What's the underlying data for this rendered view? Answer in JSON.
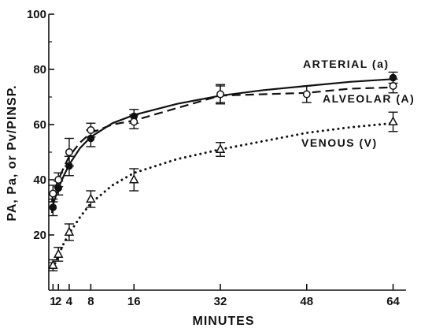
{
  "chart_data": {
    "type": "line",
    "xlabel": "MINUTES",
    "ylabel": "PA, Pa, or Pv/PINSP.",
    "xlim": [
      0,
      66
    ],
    "ylim": [
      0,
      100
    ],
    "x_ticks": [
      1,
      2,
      4,
      8,
      16,
      32,
      48,
      64
    ],
    "x_tick_labels": [
      "1",
      "2",
      "4",
      "8",
      "16",
      "32",
      "48",
      "64"
    ],
    "y_ticks": [
      20,
      40,
      60,
      80,
      100
    ],
    "y_tick_labels": [
      "20",
      "40",
      "60",
      "80",
      "100"
    ],
    "grid": false,
    "legend": "none",
    "series": [
      {
        "name": "ARTERIAL (a)",
        "marker": "filled-circle",
        "line_style": "solid",
        "x": [
          1,
          2,
          4,
          8,
          16,
          32,
          64
        ],
        "y": [
          30,
          37,
          45,
          55,
          63,
          71,
          77
        ],
        "errors": [
          3,
          2.5,
          3.5,
          3,
          2.5,
          3,
          2
        ],
        "curve_x": [
          0.8,
          1,
          2,
          3,
          4,
          6,
          8,
          12,
          16,
          24,
          32,
          40,
          48,
          56,
          64
        ],
        "curve_y": [
          28,
          31,
          37,
          41.5,
          45.5,
          51.5,
          55.5,
          60.5,
          63.5,
          67.5,
          70.5,
          72.5,
          74,
          75.5,
          76.5
        ]
      },
      {
        "name": "ALVEOLAR (A)",
        "marker": "open-circle",
        "line_style": "dashed",
        "x": [
          1,
          2,
          4,
          8,
          16,
          32,
          48,
          64
        ],
        "y": [
          35,
          40,
          50,
          58,
          61,
          71,
          71,
          74
        ],
        "errors": [
          3,
          2.5,
          5,
          2.5,
          2.5,
          3.5,
          3,
          2.5
        ],
        "curve_x": [
          0.8,
          1,
          2,
          3,
          4,
          6,
          8,
          12,
          16,
          24,
          32,
          40,
          48,
          56,
          64
        ],
        "curve_y": [
          32,
          35,
          40,
          44.5,
          48.5,
          53.5,
          57,
          60,
          61.5,
          66,
          70.5,
          71,
          71.5,
          73,
          73.5
        ]
      },
      {
        "name": "VENOUS (V)",
        "marker": "open-triangle",
        "line_style": "dotted",
        "x": [
          1,
          2,
          4,
          8,
          16,
          32,
          64
        ],
        "y": [
          9,
          13,
          21,
          33,
          40,
          51,
          61
        ],
        "errors": [
          2,
          2.5,
          3,
          3,
          4,
          2.5,
          3.5
        ],
        "curve_x": [
          1,
          2,
          3,
          4,
          6,
          8,
          12,
          16,
          24,
          32,
          40,
          48,
          56,
          64
        ],
        "curve_y": [
          8,
          12.5,
          17,
          20.5,
          26.5,
          31.5,
          38,
          42.5,
          47.5,
          51,
          54,
          57,
          59,
          60.5
        ]
      }
    ],
    "annotations": [
      {
        "text": "ARTERIAL (a)",
        "series": 0
      },
      {
        "text": "ALVEOLAR (A)",
        "series": 1
      },
      {
        "text": "VENOUS (V)",
        "series": 2
      }
    ]
  }
}
